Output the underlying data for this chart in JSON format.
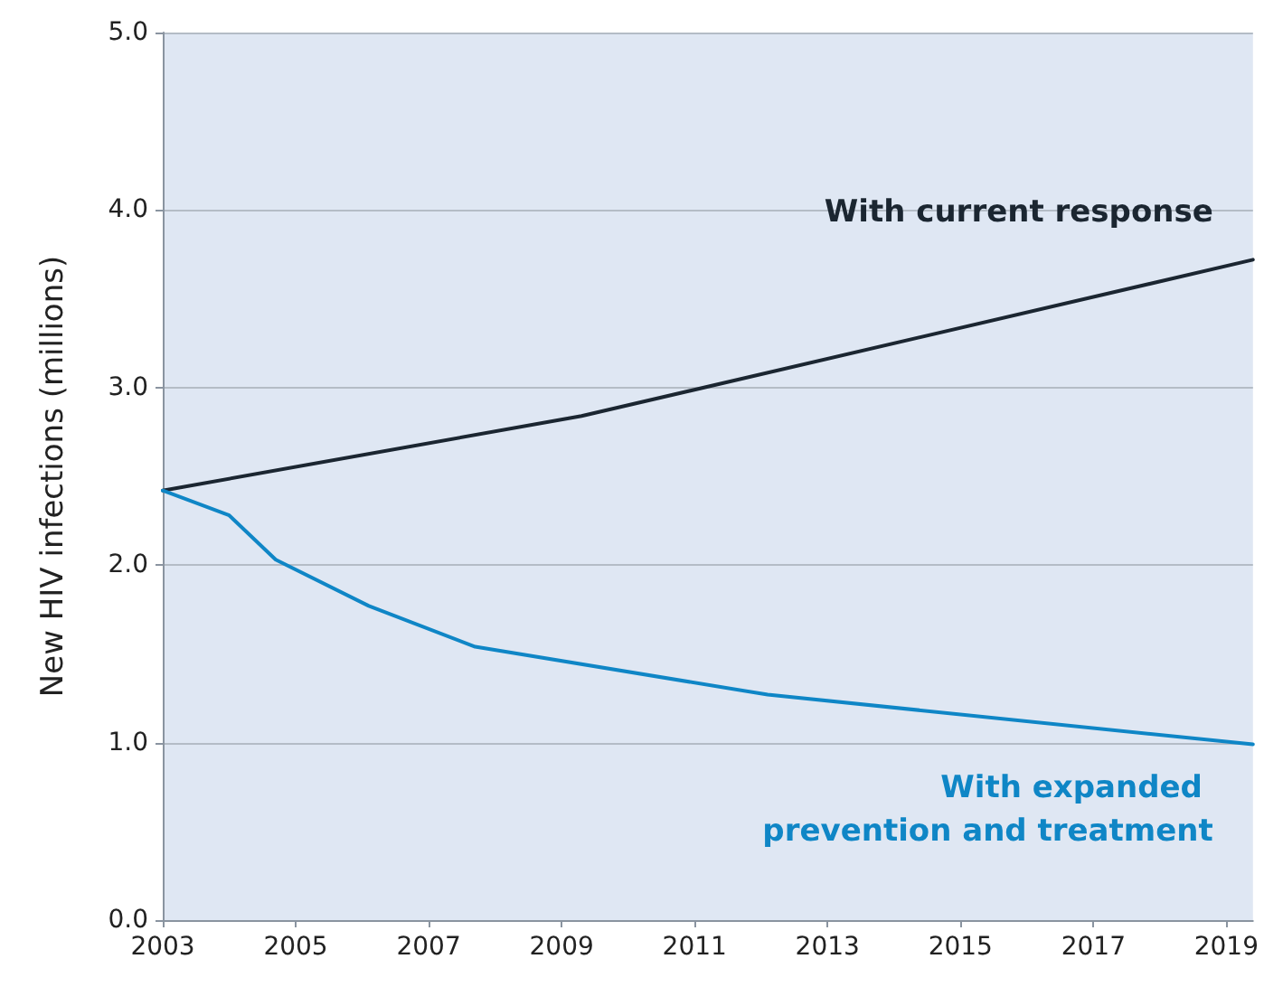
{
  "chart_data": {
    "type": "line",
    "ylabel": "New HIV infections (millions)",
    "xlim": [
      2003,
      2019.4
    ],
    "xticks": [
      2003,
      2005,
      2007,
      2009,
      2011,
      2013,
      2015,
      2017,
      2019
    ],
    "ylim": [
      0,
      5
    ],
    "yticks": [
      {
        "value": 0,
        "label": "0.0"
      },
      {
        "value": 1,
        "label": "1.0"
      },
      {
        "value": 2,
        "label": "2.0"
      },
      {
        "value": 3,
        "label": "3.0"
      },
      {
        "value": 4,
        "label": "4.0"
      },
      {
        "value": 5,
        "label": "5.0"
      }
    ],
    "grid": "y",
    "legend": false,
    "marker": "none",
    "line_style": "solid",
    "series": [
      {
        "name": "With current response",
        "color": "#1b2631",
        "x": [
          2003,
          2009.3,
          2019.4
        ],
        "values": [
          2.42,
          2.84,
          3.72
        ]
      },
      {
        "name": "With expanded prevention and treatment",
        "color": "#0f86c6",
        "x": [
          2003,
          2004,
          2004.7,
          2006.1,
          2007.7,
          2012.1,
          2019.4
        ],
        "values": [
          2.42,
          2.28,
          2.03,
          1.77,
          1.54,
          1.27,
          0.99
        ]
      }
    ]
  }
}
